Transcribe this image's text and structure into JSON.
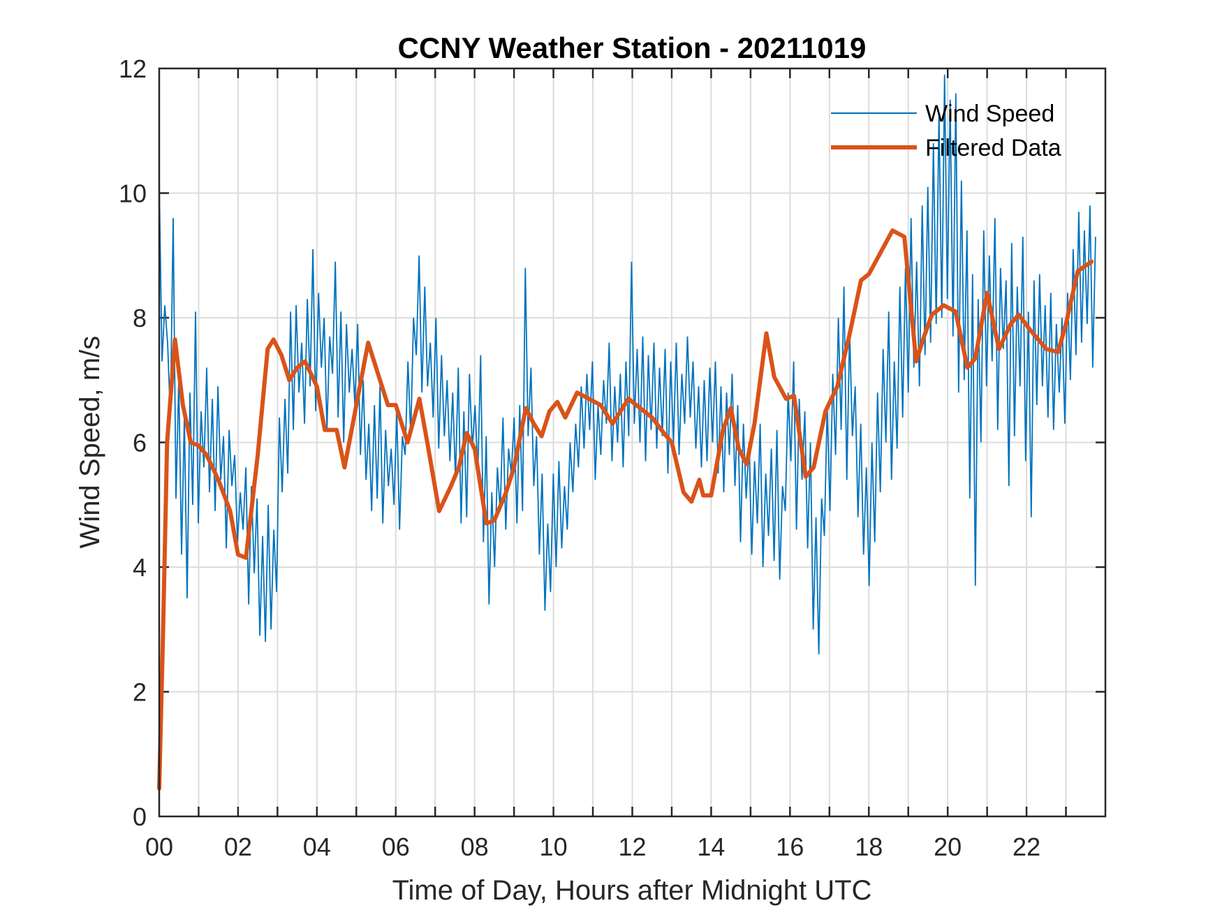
{
  "chart_data": {
    "type": "line",
    "title": "CCNY Weather Station - 20211019",
    "xlabel": "Time of Day, Hours after Midnight UTC",
    "ylabel": "Wind Speed, m/s",
    "xlim": [
      0,
      24
    ],
    "ylim": [
      0,
      12
    ],
    "xticks": [
      0,
      2,
      4,
      6,
      8,
      10,
      12,
      14,
      16,
      18,
      20,
      22
    ],
    "xtick_labels": [
      "00",
      "02",
      "04",
      "06",
      "08",
      "10",
      "12",
      "14",
      "16",
      "18",
      "20",
      "22"
    ],
    "xminor_ticks": [
      1,
      3,
      5,
      7,
      9,
      11,
      13,
      15,
      17,
      19,
      21,
      23
    ],
    "yticks": [
      0,
      2,
      4,
      6,
      8,
      10,
      12
    ],
    "ytick_labels": [
      "0",
      "2",
      "4",
      "6",
      "8",
      "10",
      "12"
    ],
    "grid": true,
    "legend": {
      "placement": "top-right",
      "entries": [
        "Wind Speed",
        "Filtered Data"
      ]
    },
    "series": [
      {
        "name": "Wind Speed",
        "color": "#0072BD",
        "x_start": 0,
        "x_step": 0.05,
        "values": [
          10.2,
          7.3,
          8.2,
          7.6,
          6.4,
          9.6,
          5.1,
          7.0,
          4.2,
          6.4,
          3.5,
          6.8,
          5.0,
          8.1,
          4.7,
          6.5,
          5.6,
          7.2,
          5.2,
          6.7,
          4.9,
          6.9,
          5.4,
          6.1,
          4.3,
          6.2,
          5.3,
          5.8,
          4.4,
          5.2,
          4.6,
          5.6,
          3.4,
          5.3,
          3.9,
          5.1,
          2.9,
          4.5,
          2.8,
          5.0,
          3.0,
          4.6,
          3.6,
          6.4,
          5.2,
          6.7,
          5.5,
          8.1,
          6.2,
          8.2,
          6.8,
          7.6,
          6.3,
          8.3,
          6.9,
          9.1,
          6.5,
          8.4,
          7.2,
          8.0,
          6.2,
          7.7,
          7.1,
          8.9,
          6.4,
          8.1,
          6.0,
          7.9,
          6.8,
          7.5,
          6.6,
          7.9,
          5.8,
          7.0,
          5.4,
          6.3,
          4.9,
          6.6,
          5.1,
          6.9,
          4.7,
          6.2,
          5.3,
          5.9,
          5.0,
          6.5,
          4.6,
          6.1,
          5.8,
          7.3,
          6.1,
          8.0,
          7.4,
          9.0,
          6.8,
          8.5,
          6.9,
          7.6,
          6.4,
          8.0,
          5.9,
          7.4,
          6.1,
          7.0,
          5.7,
          6.8,
          5.4,
          7.2,
          4.7,
          6.5,
          4.8,
          7.1,
          5.9,
          6.6,
          5.5,
          7.4,
          4.4,
          6.1,
          3.4,
          5.2,
          4.0,
          5.6,
          4.9,
          6.4,
          4.6,
          5.9,
          5.5,
          6.4,
          4.7,
          6.6,
          4.9,
          8.8,
          6.1,
          7.2,
          5.3,
          6.1,
          4.2,
          5.5,
          3.3,
          4.7,
          3.6,
          5.5,
          4.0,
          5.7,
          4.3,
          5.3,
          4.6,
          6.0,
          5.2,
          6.3,
          5.6,
          6.9,
          5.9,
          7.1,
          6.2,
          7.3,
          5.4,
          6.6,
          5.8,
          7.0,
          6.3,
          7.6,
          5.7,
          6.9,
          6.0,
          7.1,
          5.6,
          7.3,
          6.1,
          8.9,
          6.3,
          7.5,
          6.0,
          7.7,
          5.7,
          7.4,
          6.2,
          7.6,
          5.9,
          7.2,
          6.1,
          7.5,
          5.5,
          7.3,
          6.0,
          7.6,
          5.8,
          7.1,
          6.3,
          7.7,
          6.4,
          7.3,
          5.9,
          6.9,
          5.6,
          7.0,
          5.7,
          7.2,
          6.0,
          7.3,
          5.5,
          6.9,
          5.2,
          6.8,
          5.8,
          7.1,
          5.3,
          6.6,
          4.4,
          6.3,
          5.1,
          6.0,
          4.2,
          5.7,
          4.7,
          6.3,
          4.0,
          5.5,
          4.5,
          5.9,
          4.1,
          6.2,
          3.8,
          5.3,
          4.9,
          6.8,
          5.7,
          7.3,
          4.6,
          6.7,
          5.4,
          6.5,
          4.3,
          6.0,
          3.0,
          4.8,
          2.6,
          5.1,
          4.5,
          6.6,
          4.9,
          7.1,
          5.8,
          8.0,
          6.2,
          8.5,
          5.4,
          7.8,
          6.1,
          6.9,
          4.8,
          6.3,
          4.2,
          5.6,
          3.7,
          6.0,
          4.4,
          6.8,
          5.2,
          7.5,
          6.0,
          8.1,
          5.4,
          7.3,
          5.9,
          8.5,
          6.4,
          8.8,
          6.8,
          9.6,
          7.2,
          8.9,
          6.9,
          9.8,
          7.4,
          10.1,
          7.6,
          10.8,
          7.9,
          11.3,
          8.0,
          11.9,
          8.3,
          11.5,
          7.7,
          11.6,
          6.8,
          10.2,
          7.0,
          9.4,
          5.1,
          8.7,
          3.7,
          8.3,
          6.0,
          9.4,
          6.9,
          9.0,
          7.3,
          9.6,
          6.2,
          8.8,
          7.5,
          8.6,
          5.3,
          9.2,
          6.1,
          8.5,
          6.9,
          9.3,
          5.7,
          8.1,
          4.8,
          8.6,
          6.6,
          8.7,
          6.9,
          8.2,
          6.4,
          8.4,
          6.2,
          7.9,
          6.8,
          8.0,
          6.3,
          8.4,
          7.0,
          9.1,
          7.4,
          9.7,
          7.6,
          9.4,
          7.9,
          9.8,
          7.2,
          9.3
        ]
      },
      {
        "name": "Filtered Data",
        "color": "#D95319",
        "points": [
          [
            0.0,
            0.45
          ],
          [
            0.1,
            3.0
          ],
          [
            0.2,
            6.0
          ],
          [
            0.4,
            7.65
          ],
          [
            0.6,
            6.6
          ],
          [
            0.8,
            6.0
          ],
          [
            1.0,
            5.95
          ],
          [
            1.2,
            5.8
          ],
          [
            1.5,
            5.4
          ],
          [
            1.8,
            4.9
          ],
          [
            2.0,
            4.2
          ],
          [
            2.2,
            4.15
          ],
          [
            2.5,
            5.8
          ],
          [
            2.75,
            7.5
          ],
          [
            2.9,
            7.65
          ],
          [
            3.1,
            7.4
          ],
          [
            3.3,
            7.0
          ],
          [
            3.5,
            7.2
          ],
          [
            3.7,
            7.3
          ],
          [
            4.0,
            6.9
          ],
          [
            4.2,
            6.2
          ],
          [
            4.5,
            6.2
          ],
          [
            4.7,
            5.6
          ],
          [
            5.0,
            6.6
          ],
          [
            5.3,
            7.6
          ],
          [
            5.6,
            7.0
          ],
          [
            5.8,
            6.6
          ],
          [
            6.0,
            6.6
          ],
          [
            6.3,
            6.0
          ],
          [
            6.6,
            6.7
          ],
          [
            6.8,
            6.0
          ],
          [
            7.1,
            4.9
          ],
          [
            7.4,
            5.3
          ],
          [
            7.6,
            5.6
          ],
          [
            7.8,
            6.15
          ],
          [
            8.0,
            5.9
          ],
          [
            8.3,
            4.7
          ],
          [
            8.5,
            4.75
          ],
          [
            8.8,
            5.2
          ],
          [
            9.0,
            5.6
          ],
          [
            9.3,
            6.55
          ],
          [
            9.5,
            6.3
          ],
          [
            9.7,
            6.1
          ],
          [
            9.9,
            6.5
          ],
          [
            10.1,
            6.65
          ],
          [
            10.3,
            6.4
          ],
          [
            10.6,
            6.8
          ],
          [
            10.9,
            6.7
          ],
          [
            11.2,
            6.6
          ],
          [
            11.5,
            6.3
          ],
          [
            11.7,
            6.5
          ],
          [
            11.9,
            6.7
          ],
          [
            12.2,
            6.55
          ],
          [
            12.5,
            6.4
          ],
          [
            12.8,
            6.15
          ],
          [
            13.0,
            6.0
          ],
          [
            13.3,
            5.2
          ],
          [
            13.5,
            5.05
          ],
          [
            13.7,
            5.4
          ],
          [
            13.8,
            5.15
          ],
          [
            14.0,
            5.15
          ],
          [
            14.3,
            6.2
          ],
          [
            14.5,
            6.55
          ],
          [
            14.7,
            5.9
          ],
          [
            14.9,
            5.65
          ],
          [
            15.1,
            6.3
          ],
          [
            15.4,
            7.75
          ],
          [
            15.6,
            7.05
          ],
          [
            15.9,
            6.7
          ],
          [
            16.1,
            6.75
          ],
          [
            16.4,
            5.45
          ],
          [
            16.6,
            5.6
          ],
          [
            16.9,
            6.5
          ],
          [
            17.2,
            6.9
          ],
          [
            17.5,
            7.7
          ],
          [
            17.8,
            8.6
          ],
          [
            18.0,
            8.7
          ],
          [
            18.3,
            9.05
          ],
          [
            18.6,
            9.4
          ],
          [
            18.9,
            9.3
          ],
          [
            19.2,
            7.3
          ],
          [
            19.4,
            7.7
          ],
          [
            19.6,
            8.05
          ],
          [
            19.9,
            8.2
          ],
          [
            20.2,
            8.1
          ],
          [
            20.5,
            7.2
          ],
          [
            20.7,
            7.35
          ],
          [
            21.0,
            8.4
          ],
          [
            21.3,
            7.5
          ],
          [
            21.6,
            7.9
          ],
          [
            21.8,
            8.05
          ],
          [
            22.1,
            7.8
          ],
          [
            22.5,
            7.5
          ],
          [
            22.8,
            7.45
          ],
          [
            23.0,
            7.9
          ],
          [
            23.3,
            8.75
          ],
          [
            23.65,
            8.9
          ]
        ]
      }
    ]
  }
}
